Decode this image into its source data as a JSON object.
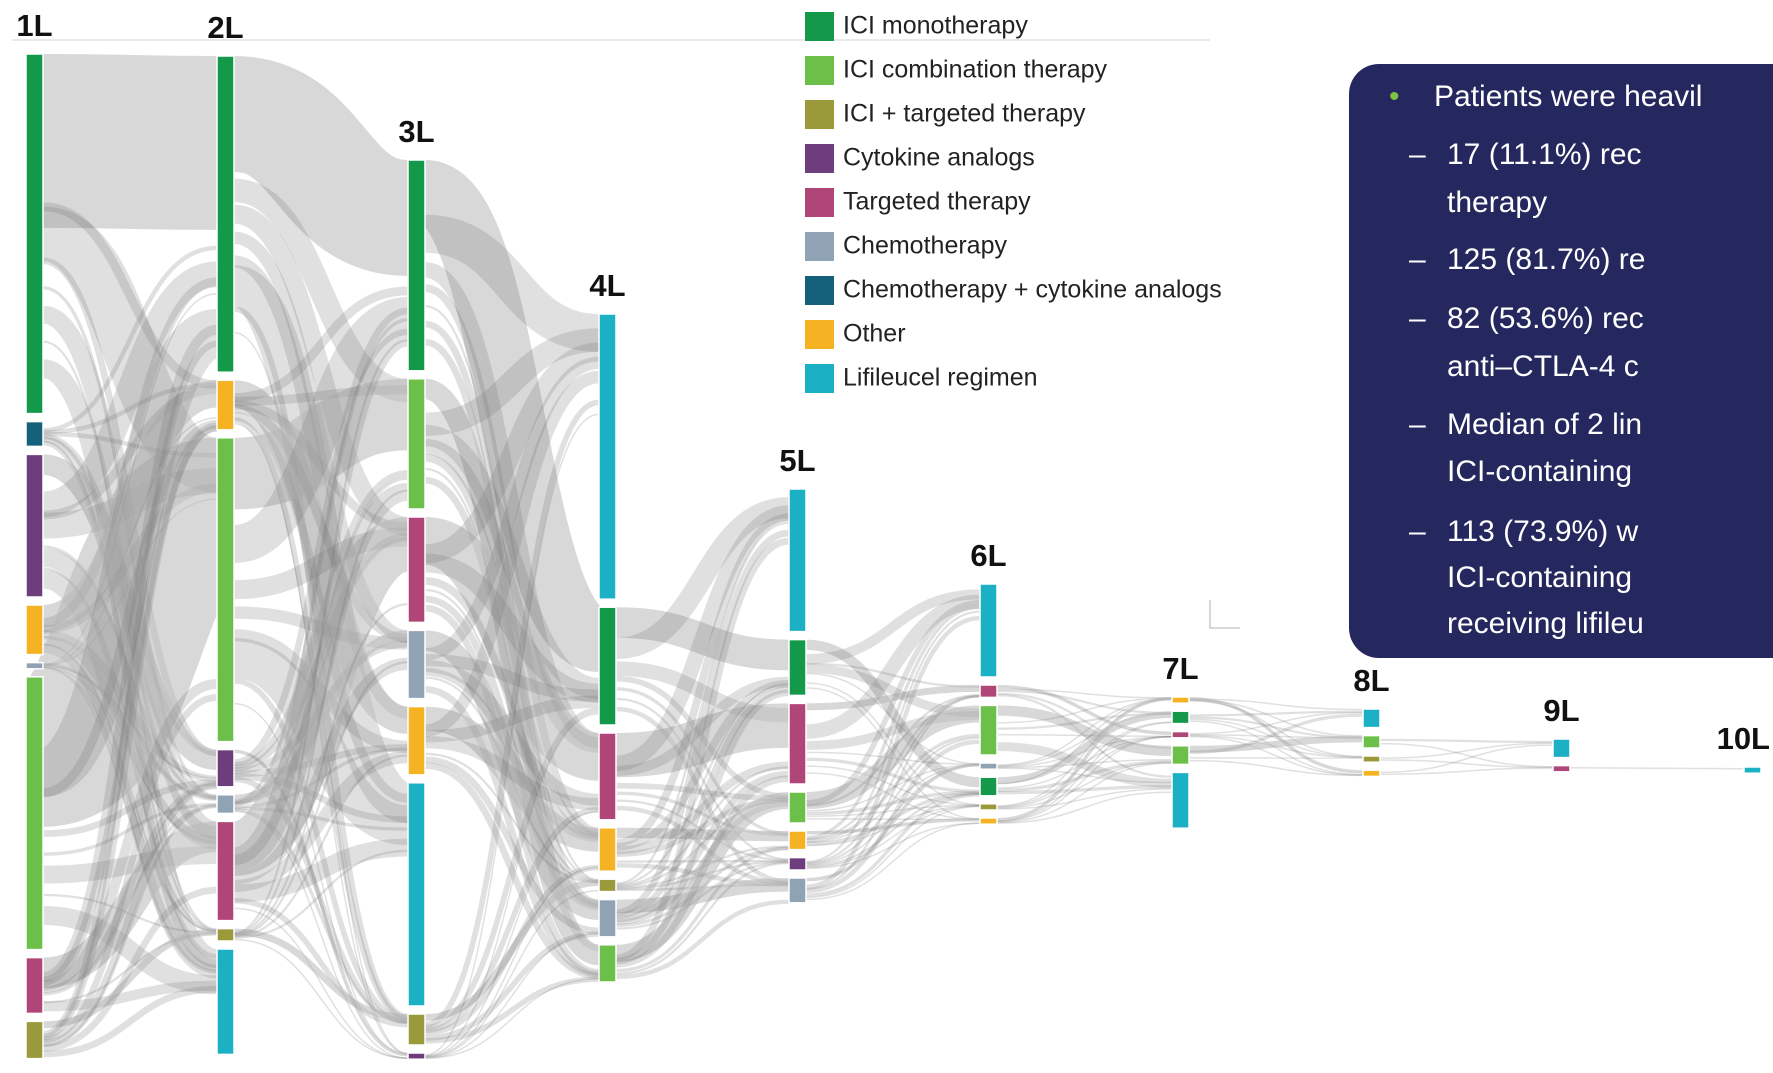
{
  "legend": [
    {
      "label": "ICI monotherapy",
      "color": "#14994a"
    },
    {
      "label": "ICI combination therapy",
      "color": "#6cc04a"
    },
    {
      "label": "ICI + targeted therapy",
      "color": "#9a9a3a"
    },
    {
      "label": "Cytokine analogs",
      "color": "#6d3d7e"
    },
    {
      "label": "Targeted therapy",
      "color": "#b04577"
    },
    {
      "label": "Chemotherapy",
      "color": "#8fa3b5"
    },
    {
      "label": "Chemotherapy + cytokine analogs",
      "color": "#15607a"
    },
    {
      "label": "Other",
      "color": "#f5b323"
    },
    {
      "label": "Lifileucel regimen",
      "color": "#1cb0c4"
    }
  ],
  "columns": [
    {
      "label": "1L",
      "nodes": [
        {
          "category": 0,
          "count": 58
        },
        {
          "category": 6,
          "count": 4
        },
        {
          "category": 3,
          "count": 23
        },
        {
          "category": 7,
          "count": 8
        },
        {
          "category": 5,
          "count": 1
        },
        {
          "category": 1,
          "count": 44
        },
        {
          "category": 4,
          "count": 9
        },
        {
          "category": 2,
          "count": 6
        }
      ]
    },
    {
      "label": "2L",
      "nodes": [
        {
          "category": 0,
          "count": 51
        },
        {
          "category": 7,
          "count": 8
        },
        {
          "category": 1,
          "count": 49
        },
        {
          "category": 3,
          "count": 6
        },
        {
          "category": 5,
          "count": 3
        },
        {
          "category": 4,
          "count": 16
        },
        {
          "category": 2,
          "count": 2
        },
        {
          "category": 8,
          "count": 17
        }
      ]
    },
    {
      "label": "3L",
      "nodes": [
        {
          "category": 0,
          "count": 34
        },
        {
          "category": 1,
          "count": 21
        },
        {
          "category": 4,
          "count": 17
        },
        {
          "category": 5,
          "count": 11
        },
        {
          "category": 7,
          "count": 11
        },
        {
          "category": 8,
          "count": 36
        },
        {
          "category": 2,
          "count": 5
        },
        {
          "category": 3,
          "count": 1
        }
      ]
    },
    {
      "label": "4L",
      "nodes": [
        {
          "category": 8,
          "count": 46
        },
        {
          "category": 0,
          "count": 19
        },
        {
          "category": 4,
          "count": 14
        },
        {
          "category": 7,
          "count": 7
        },
        {
          "category": 2,
          "count": 2
        },
        {
          "category": 5,
          "count": 6
        },
        {
          "category": 1,
          "count": 6
        }
      ]
    },
    {
      "label": "5L",
      "nodes": [
        {
          "category": 8,
          "count": 23
        },
        {
          "category": 0,
          "count": 9
        },
        {
          "category": 4,
          "count": 13
        },
        {
          "category": 1,
          "count": 5
        },
        {
          "category": 7,
          "count": 3
        },
        {
          "category": 3,
          "count": 2
        },
        {
          "category": 5,
          "count": 4
        }
      ]
    },
    {
      "label": "6L",
      "nodes": [
        {
          "category": 8,
          "count": 15
        },
        {
          "category": 4,
          "count": 2
        },
        {
          "category": 1,
          "count": 8
        },
        {
          "category": 5,
          "count": 1
        },
        {
          "category": 0,
          "count": 3
        },
        {
          "category": 2,
          "count": 1
        },
        {
          "category": 7,
          "count": 1
        }
      ]
    },
    {
      "label": "7L",
      "nodes": [
        {
          "category": 7,
          "count": 1
        },
        {
          "category": 0,
          "count": 2
        },
        {
          "category": 4,
          "count": 1
        },
        {
          "category": 1,
          "count": 3
        },
        {
          "category": 8,
          "count": 9
        }
      ]
    },
    {
      "label": "8L",
      "nodes": [
        {
          "category": 8,
          "count": 3
        },
        {
          "category": 1,
          "count": 2
        },
        {
          "category": 2,
          "count": 1
        },
        {
          "category": 7,
          "count": 1
        }
      ]
    },
    {
      "label": "9L",
      "nodes": [
        {
          "category": 8,
          "count": 3
        },
        {
          "category": 4,
          "count": 1
        }
      ]
    },
    {
      "label": "10L",
      "nodes": [
        {
          "category": 8,
          "count": 1
        }
      ]
    }
  ],
  "box": {
    "bullet": "Patients were heavil",
    "items": [
      [
        "17 (11.1%) rec",
        "therapy"
      ],
      [
        "125 (81.7%) re"
      ],
      [
        "82 (53.6%) rec",
        "anti–CTLA-4 c"
      ],
      [
        "Median of 2 lin",
        "ICI-containing"
      ],
      [
        "113 (73.9%) w",
        "ICI-containing",
        "receiving lifileu"
      ]
    ]
  }
}
